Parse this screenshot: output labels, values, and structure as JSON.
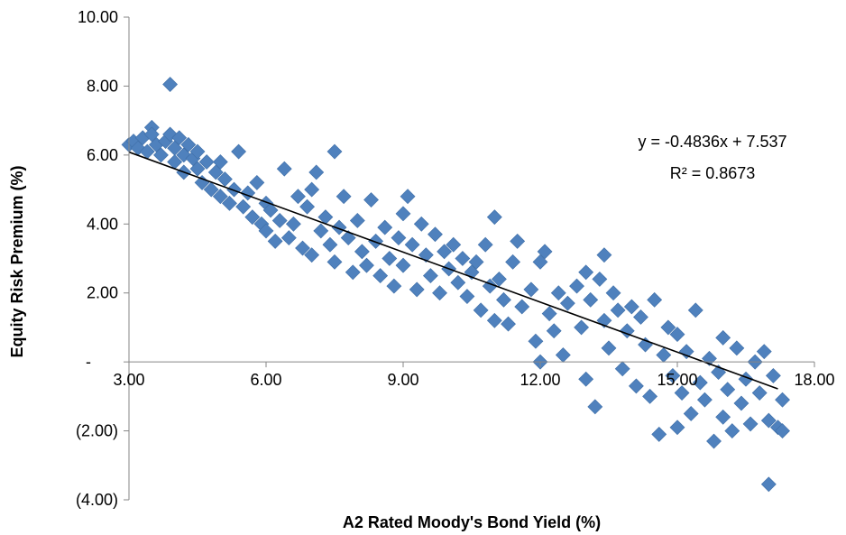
{
  "chart_data": {
    "type": "scatter",
    "title": "",
    "xlabel": "A2 Rated Moody's Bond Yield (%)",
    "ylabel": "Equity Risk Premium (%)",
    "xlim": [
      3,
      18
    ],
    "ylim": [
      -4,
      10
    ],
    "x_ticks": [
      {
        "value": 3,
        "label": "3.00"
      },
      {
        "value": 6,
        "label": "6.00"
      },
      {
        "value": 9,
        "label": "9.00"
      },
      {
        "value": 12,
        "label": "12.00"
      },
      {
        "value": 15,
        "label": "15.00"
      },
      {
        "value": 18,
        "label": "18.00"
      }
    ],
    "y_ticks": [
      {
        "value": 10,
        "label": "10.00"
      },
      {
        "value": 8,
        "label": "8.00"
      },
      {
        "value": 6,
        "label": "6.00"
      },
      {
        "value": 4,
        "label": "4.00"
      },
      {
        "value": 2,
        "label": "2.00"
      },
      {
        "value": 0,
        "label": "-"
      },
      {
        "value": -2,
        "label": "(2.00)"
      },
      {
        "value": -4,
        "label": "(4.00)"
      }
    ],
    "grid": false,
    "legend": "none",
    "marker": "diamond",
    "marker_color": "#4F81BD",
    "trendline": {
      "slope": -0.4836,
      "intercept": 7.537,
      "x_range": [
        3.0,
        17.2
      ],
      "color": "#000000",
      "equation_label": "y = -0.4836x + 7.537",
      "r2_label": "R² = 0.8673"
    },
    "series": [
      {
        "values": [
          [
            3.0,
            6.3
          ],
          [
            3.1,
            6.4
          ],
          [
            3.2,
            6.2
          ],
          [
            3.3,
            6.5
          ],
          [
            3.4,
            6.1
          ],
          [
            3.5,
            6.8
          ],
          [
            3.5,
            6.6
          ],
          [
            3.6,
            6.3
          ],
          [
            3.7,
            6.0
          ],
          [
            3.8,
            6.4
          ],
          [
            3.9,
            8.05
          ],
          [
            3.9,
            6.6
          ],
          [
            4.0,
            6.2
          ],
          [
            4.0,
            5.8
          ],
          [
            4.1,
            6.5
          ],
          [
            4.2,
            6.0
          ],
          [
            4.2,
            5.5
          ],
          [
            4.3,
            6.3
          ],
          [
            4.4,
            5.9
          ],
          [
            4.5,
            5.6
          ],
          [
            4.5,
            6.1
          ],
          [
            4.6,
            5.2
          ],
          [
            4.7,
            5.8
          ],
          [
            4.8,
            5.0
          ],
          [
            4.9,
            5.5
          ],
          [
            5.0,
            5.8
          ],
          [
            5.0,
            4.8
          ],
          [
            5.1,
            5.3
          ],
          [
            5.2,
            4.6
          ],
          [
            5.3,
            5.0
          ],
          [
            5.4,
            6.1
          ],
          [
            5.5,
            4.5
          ],
          [
            5.6,
            4.9
          ],
          [
            5.7,
            4.2
          ],
          [
            5.8,
            5.2
          ],
          [
            5.9,
            4.0
          ],
          [
            6.0,
            4.6
          ],
          [
            6.0,
            3.8
          ],
          [
            6.1,
            4.4
          ],
          [
            6.2,
            3.5
          ],
          [
            6.3,
            4.1
          ],
          [
            6.4,
            5.6
          ],
          [
            6.5,
            3.6
          ],
          [
            6.6,
            4.0
          ],
          [
            6.7,
            4.8
          ],
          [
            6.8,
            3.3
          ],
          [
            6.9,
            4.5
          ],
          [
            7.0,
            3.1
          ],
          [
            7.0,
            5.0
          ],
          [
            7.1,
            5.5
          ],
          [
            7.2,
            3.8
          ],
          [
            7.3,
            4.2
          ],
          [
            7.4,
            3.4
          ],
          [
            7.5,
            6.1
          ],
          [
            7.5,
            2.9
          ],
          [
            7.6,
            3.9
          ],
          [
            7.7,
            4.8
          ],
          [
            7.8,
            3.6
          ],
          [
            7.9,
            2.6
          ],
          [
            8.0,
            4.1
          ],
          [
            8.1,
            3.2
          ],
          [
            8.2,
            2.8
          ],
          [
            8.3,
            4.7
          ],
          [
            8.4,
            3.5
          ],
          [
            8.5,
            2.5
          ],
          [
            8.6,
            3.9
          ],
          [
            8.7,
            3.0
          ],
          [
            8.8,
            2.2
          ],
          [
            8.9,
            3.6
          ],
          [
            9.0,
            4.3
          ],
          [
            9.0,
            2.8
          ],
          [
            9.1,
            4.8
          ],
          [
            9.2,
            3.4
          ],
          [
            9.3,
            2.1
          ],
          [
            9.4,
            4.0
          ],
          [
            9.5,
            3.1
          ],
          [
            9.6,
            2.5
          ],
          [
            9.7,
            3.7
          ],
          [
            9.8,
            2.0
          ],
          [
            9.9,
            3.2
          ],
          [
            10.0,
            2.7
          ],
          [
            10.1,
            3.4
          ],
          [
            10.2,
            2.3
          ],
          [
            10.3,
            3.0
          ],
          [
            10.4,
            1.9
          ],
          [
            10.5,
            2.6
          ],
          [
            10.6,
            2.9
          ],
          [
            10.7,
            1.5
          ],
          [
            10.8,
            3.4
          ],
          [
            10.9,
            2.2
          ],
          [
            11.0,
            4.2
          ],
          [
            11.0,
            1.2
          ],
          [
            11.1,
            2.4
          ],
          [
            11.2,
            1.8
          ],
          [
            11.3,
            1.1
          ],
          [
            11.4,
            2.9
          ],
          [
            11.5,
            3.5
          ],
          [
            11.6,
            1.6
          ],
          [
            11.8,
            2.1
          ],
          [
            11.9,
            0.6
          ],
          [
            12.0,
            2.9
          ],
          [
            12.0,
            0.0
          ],
          [
            12.1,
            3.2
          ],
          [
            12.2,
            1.4
          ],
          [
            12.3,
            0.9
          ],
          [
            12.4,
            2.0
          ],
          [
            12.5,
            0.2
          ],
          [
            12.6,
            1.7
          ],
          [
            12.8,
            2.2
          ],
          [
            12.9,
            1.0
          ],
          [
            13.0,
            2.6
          ],
          [
            13.0,
            -0.5
          ],
          [
            13.1,
            1.8
          ],
          [
            13.2,
            -1.3
          ],
          [
            13.3,
            2.4
          ],
          [
            13.4,
            3.1
          ],
          [
            13.4,
            1.2
          ],
          [
            13.5,
            0.4
          ],
          [
            13.6,
            2.0
          ],
          [
            13.7,
            1.5
          ],
          [
            13.8,
            -0.2
          ],
          [
            13.9,
            0.9
          ],
          [
            14.0,
            1.6
          ],
          [
            14.1,
            -0.7
          ],
          [
            14.2,
            1.3
          ],
          [
            14.3,
            0.5
          ],
          [
            14.4,
            -1.0
          ],
          [
            14.5,
            1.8
          ],
          [
            14.6,
            -2.1
          ],
          [
            14.7,
            0.2
          ],
          [
            14.8,
            1.0
          ],
          [
            14.9,
            -0.4
          ],
          [
            15.0,
            -1.9
          ],
          [
            15.0,
            0.8
          ],
          [
            15.1,
            -0.9
          ],
          [
            15.2,
            0.3
          ],
          [
            15.3,
            -1.5
          ],
          [
            15.4,
            1.5
          ],
          [
            15.5,
            -0.6
          ],
          [
            15.6,
            -1.1
          ],
          [
            15.7,
            0.1
          ],
          [
            15.8,
            -2.3
          ],
          [
            15.9,
            -0.3
          ],
          [
            16.0,
            0.7
          ],
          [
            16.0,
            -1.6
          ],
          [
            16.1,
            -0.8
          ],
          [
            16.2,
            -2.0
          ],
          [
            16.3,
            0.4
          ],
          [
            16.4,
            -1.2
          ],
          [
            16.5,
            -0.5
          ],
          [
            16.6,
            -1.8
          ],
          [
            16.7,
            0.0
          ],
          [
            16.8,
            -0.9
          ],
          [
            16.9,
            0.3
          ],
          [
            17.0,
            -1.7
          ],
          [
            17.0,
            -3.55
          ],
          [
            17.1,
            -0.4
          ],
          [
            17.2,
            -1.9
          ],
          [
            17.3,
            -1.1
          ],
          [
            17.3,
            -2.0
          ]
        ]
      }
    ]
  }
}
